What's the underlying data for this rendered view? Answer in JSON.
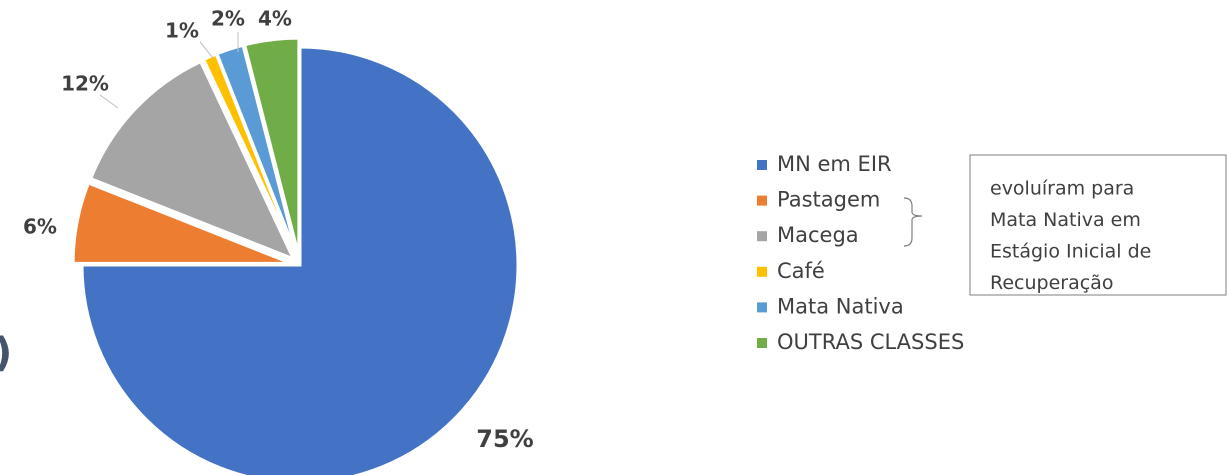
{
  "chart_data": {
    "type": "pie",
    "categories": [
      "MN em EIR",
      "Pastagem",
      "Macega",
      "Café",
      "Mata Nativa",
      "OUTRAS CLASSES"
    ],
    "values": [
      75,
      6,
      12,
      1,
      2,
      4
    ],
    "value_labels": [
      "75%",
      "6%",
      "12%",
      "1%",
      "2%",
      "4%"
    ],
    "colors": [
      "#4472c4",
      "#ed7d31",
      "#a5a5a5",
      "#ffc000",
      "#5b9bd5",
      "#70ad47"
    ],
    "legend": "right",
    "annotation": [
      "evoluíram para",
      "Mata Nativa em",
      "Estágio Inicial de",
      "Recuperação"
    ],
    "cropped_text": ")"
  }
}
